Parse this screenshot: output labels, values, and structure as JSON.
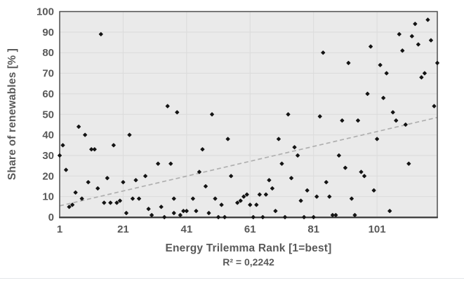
{
  "chart_data": {
    "type": "scatter",
    "title": "",
    "xlabel": "Energy Trilemma Rank [1=best]",
    "ylabel": "Share of renewables [% ]",
    "annotation": "R² = 0,2242",
    "r_squared": "0,2242",
    "xlim": [
      1,
      120
    ],
    "ylim": [
      0,
      100
    ],
    "x_ticks": [
      1,
      21,
      41,
      61,
      81,
      101
    ],
    "y_ticks": [
      0,
      10,
      20,
      30,
      40,
      50,
      60,
      70,
      80,
      90,
      100
    ],
    "grid": true,
    "legend": "none",
    "marker": "diamond",
    "trendline": {
      "style": "dashed",
      "y_at_x_min": 5.5,
      "y_at_x_max": 48.5
    },
    "points": [
      [
        1,
        30
      ],
      [
        2,
        35
      ],
      [
        3,
        23
      ],
      [
        4,
        5
      ],
      [
        5,
        6
      ],
      [
        6,
        12
      ],
      [
        7,
        44
      ],
      [
        8,
        9
      ],
      [
        9,
        40
      ],
      [
        10,
        17
      ],
      [
        11,
        33
      ],
      [
        12,
        33
      ],
      [
        13,
        14
      ],
      [
        14,
        89
      ],
      [
        15,
        7
      ],
      [
        16,
        19
      ],
      [
        17,
        7
      ],
      [
        18,
        35
      ],
      [
        19,
        7
      ],
      [
        20,
        8
      ],
      [
        21,
        17
      ],
      [
        22,
        2
      ],
      [
        23,
        40
      ],
      [
        24,
        9
      ],
      [
        25,
        18
      ],
      [
        26,
        9
      ],
      [
        28,
        20
      ],
      [
        29,
        4
      ],
      [
        30,
        1
      ],
      [
        32,
        26
      ],
      [
        33,
        5
      ],
      [
        34,
        0
      ],
      [
        35,
        54
      ],
      [
        36,
        26
      ],
      [
        37,
        9
      ],
      [
        37,
        2
      ],
      [
        38,
        51
      ],
      [
        39,
        1
      ],
      [
        40,
        3
      ],
      [
        41,
        3
      ],
      [
        43,
        9
      ],
      [
        44,
        3
      ],
      [
        45,
        22
      ],
      [
        46,
        33
      ],
      [
        47,
        15
      ],
      [
        48,
        2
      ],
      [
        49,
        50
      ],
      [
        50,
        9
      ],
      [
        51,
        0
      ],
      [
        52,
        6
      ],
      [
        53,
        0
      ],
      [
        54,
        38
      ],
      [
        55,
        20
      ],
      [
        57,
        7
      ],
      [
        58,
        8
      ],
      [
        59,
        10
      ],
      [
        60,
        11
      ],
      [
        61,
        6
      ],
      [
        62,
        0
      ],
      [
        63,
        6
      ],
      [
        64,
        11
      ],
      [
        65,
        0
      ],
      [
        66,
        11
      ],
      [
        67,
        18
      ],
      [
        68,
        14
      ],
      [
        69,
        3
      ],
      [
        70,
        38
      ],
      [
        71,
        26
      ],
      [
        72,
        0
      ],
      [
        73,
        50
      ],
      [
        74,
        19
      ],
      [
        75,
        34
      ],
      [
        76,
        30
      ],
      [
        77,
        8
      ],
      [
        78,
        0
      ],
      [
        79,
        13
      ],
      [
        81,
        0
      ],
      [
        82,
        10
      ],
      [
        83,
        49
      ],
      [
        84,
        80
      ],
      [
        85,
        17
      ],
      [
        86,
        10
      ],
      [
        87,
        1
      ],
      [
        88,
        1
      ],
      [
        89,
        30
      ],
      [
        90,
        47
      ],
      [
        91,
        24
      ],
      [
        92,
        75
      ],
      [
        93,
        9
      ],
      [
        94,
        1
      ],
      [
        95,
        47
      ],
      [
        96,
        22
      ],
      [
        97,
        20
      ],
      [
        98,
        60
      ],
      [
        99,
        83
      ],
      [
        100,
        13
      ],
      [
        101,
        38
      ],
      [
        102,
        74
      ],
      [
        103,
        58
      ],
      [
        104,
        70
      ],
      [
        105,
        3
      ],
      [
        106,
        51
      ],
      [
        107,
        47
      ],
      [
        108,
        89
      ],
      [
        109,
        81
      ],
      [
        110,
        45
      ],
      [
        111,
        26
      ],
      [
        112,
        88
      ],
      [
        113,
        94
      ],
      [
        114,
        84
      ],
      [
        115,
        68
      ],
      [
        116,
        70
      ],
      [
        117,
        96
      ],
      [
        118,
        86
      ],
      [
        119,
        54
      ],
      [
        120,
        75
      ]
    ]
  },
  "colors": {
    "background": "#FFFFFF",
    "plot_fill": "#EAEAEA",
    "gridline": "#DBDBDB",
    "plot_border": "#4D4D4D",
    "axis_line": "#333333",
    "marker": "#141414",
    "trendline": "#AFAFAF",
    "text": "#595959",
    "bottom_divider": "#E3E6E9"
  }
}
